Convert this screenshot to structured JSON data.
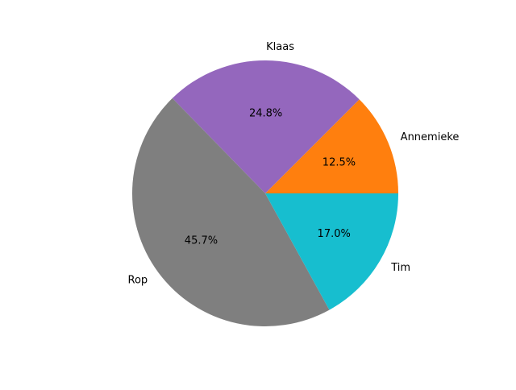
{
  "chart_data": {
    "type": "pie",
    "title": "",
    "slices": [
      {
        "label": "Annemieke",
        "value": 12.5,
        "pct_label": "12.5%",
        "color": "#ff7f0e"
      },
      {
        "label": "Klaas",
        "value": 24.8,
        "pct_label": "24.8%",
        "color": "#9467bd"
      },
      {
        "label": "Rop",
        "value": 45.7,
        "pct_label": "45.7%",
        "color": "#7f7f7f"
      },
      {
        "label": "Tim",
        "value": 17.0,
        "pct_label": "17.0%",
        "color": "#17becf"
      }
    ],
    "start_angle_deg": 0,
    "direction": "counterclockwise",
    "legend": "none"
  }
}
